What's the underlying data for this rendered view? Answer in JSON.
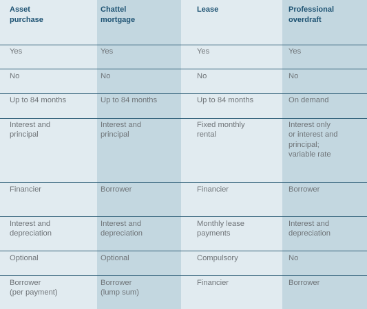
{
  "headers": [
    "Asset\npurchase",
    "Chattel\nmortgage",
    "Lease",
    "Professional\noverdraft"
  ],
  "rows": [
    [
      "Yes",
      "Yes",
      "Yes",
      "Yes"
    ],
    [
      "No",
      "No",
      "No",
      "No"
    ],
    [
      "Up to 84 months",
      "Up to 84 months",
      "Up to 84 months",
      "On demand"
    ],
    [
      "Interest and\nprincipal",
      "Interest and\nprincipal",
      "Fixed monthly\nrental",
      "Interest only\nor interest and\nprincipal;\nvariable rate"
    ],
    [
      "Financier",
      "Borrower",
      "Financier",
      "Borrower"
    ],
    [
      "Interest and\ndepreciation",
      "Interest and\ndepreciation",
      "Monthly lease\npayments",
      "Interest and\ndepreciation"
    ],
    [
      "Optional",
      "Optional",
      "Compulsory",
      "No"
    ],
    [
      "Borrower\n(per payment)",
      "Borrower\n(lump sum)",
      "Financier",
      "Borrower"
    ]
  ],
  "colors": {
    "header_text": "#1d5272",
    "body_text": "#6f7478",
    "col_light": "#e1ebf0",
    "col_dark": "#c3d7e0",
    "divider": "#2f5f78"
  }
}
